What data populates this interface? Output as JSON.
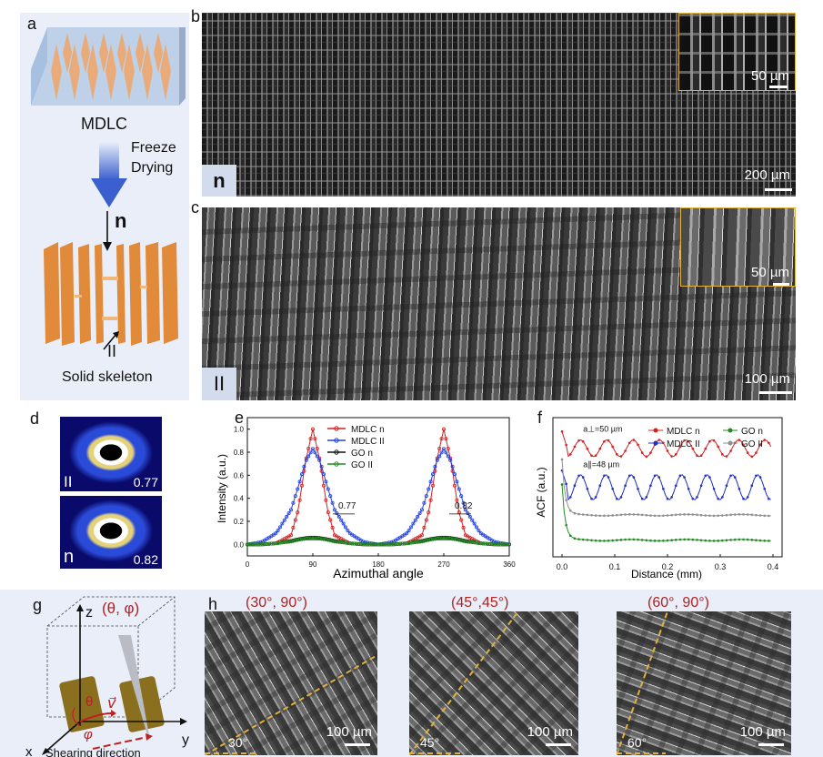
{
  "figure": {
    "panel_labels": {
      "a": "a",
      "b": "b",
      "c": "c",
      "d": "d",
      "e": "e",
      "f": "f",
      "g": "g",
      "h": "h"
    },
    "colors": {
      "panel_bg": "#e9eef8",
      "inset_border": "#e0b23a",
      "accent_red": "#b22222"
    }
  },
  "panel_a": {
    "top_label": "MDLC",
    "arrow_label_line1": "Freeze",
    "arrow_label_line2": "Drying",
    "n_label": "n",
    "parallel_label": "II",
    "bottom_label": "Solid skeleton"
  },
  "panel_b": {
    "direction_tag": "n",
    "main_scale": "200 µm",
    "inset_scale": "50 µm"
  },
  "panel_c": {
    "direction_tag": "II",
    "main_scale": "100 µm",
    "inset_scale": "50 µm"
  },
  "panel_d": {
    "images": [
      {
        "tag": "II",
        "value": "0.77"
      },
      {
        "tag": "n",
        "value": "0.82"
      }
    ]
  },
  "panel_g": {
    "z_axis": "z",
    "y_axis": "y",
    "x_axis": "x",
    "angles_title": "(θ, φ)",
    "theta": "θ",
    "phi": "φ",
    "velocity": "v⃗",
    "shear_label": "Shearing direction"
  },
  "panel_h": {
    "images": [
      {
        "title": "(30°, 90°)",
        "angle": "30°",
        "scale": "100 µm"
      },
      {
        "title": "(45°,45°)",
        "angle": "45°",
        "scale": "100 µm"
      },
      {
        "title": "(60°, 90°)",
        "angle": "60°",
        "scale": "100 µm"
      }
    ]
  },
  "chart_data": [
    {
      "panel": "e",
      "type": "line",
      "title": "",
      "xlabel": "Azimuthal angle",
      "ylabel": "Intensity (a.u.)",
      "xlim": [
        0,
        360
      ],
      "ylim": [
        -0.1,
        1.1
      ],
      "xticks": [
        0,
        90,
        180,
        270,
        360
      ],
      "yticks": [
        0.0,
        0.2,
        0.4,
        0.6,
        0.8,
        1.0
      ],
      "x": [
        0,
        20,
        40,
        60,
        70,
        80,
        90,
        100,
        110,
        120,
        140,
        160,
        180,
        200,
        220,
        240,
        250,
        260,
        270,
        280,
        290,
        300,
        320,
        340,
        360
      ],
      "series": [
        {
          "name": "MDLC n",
          "color": "#d02020",
          "marker": "circle-open",
          "values": [
            0,
            0,
            0.01,
            0.08,
            0.3,
            0.72,
            1.0,
            0.72,
            0.3,
            0.08,
            0.01,
            0,
            0,
            0,
            0.01,
            0.08,
            0.3,
            0.72,
            1.0,
            0.72,
            0.3,
            0.08,
            0.01,
            0,
            0
          ]
        },
        {
          "name": "MDLC II",
          "color": "#2040e0",
          "marker": "circle-open",
          "values": [
            0,
            0.02,
            0.1,
            0.3,
            0.5,
            0.72,
            0.83,
            0.72,
            0.5,
            0.3,
            0.1,
            0.02,
            0,
            0.02,
            0.1,
            0.3,
            0.5,
            0.72,
            0.83,
            0.72,
            0.5,
            0.3,
            0.1,
            0.02,
            0
          ]
        },
        {
          "name": "GO n",
          "color": "#111111",
          "marker": "circle-open",
          "values": [
            0,
            0,
            0.01,
            0.03,
            0.045,
            0.055,
            0.06,
            0.055,
            0.045,
            0.03,
            0.01,
            0,
            0,
            0,
            0.01,
            0.03,
            0.045,
            0.055,
            0.06,
            0.055,
            0.045,
            0.03,
            0.01,
            0,
            0
          ]
        },
        {
          "name": "GO II",
          "color": "#228b22",
          "marker": "diamond-open",
          "values": [
            0,
            0,
            0.01,
            0.025,
            0.04,
            0.05,
            0.05,
            0.05,
            0.04,
            0.025,
            0.01,
            0,
            0,
            0,
            0.01,
            0.025,
            0.04,
            0.05,
            0.05,
            0.05,
            0.04,
            0.025,
            0.01,
            0,
            0
          ]
        }
      ],
      "annotations": [
        {
          "text": "0.77",
          "x": 125,
          "y": 0.28
        },
        {
          "text": "0.82",
          "x": 285,
          "y": 0.28
        }
      ],
      "legend_position": "top-center"
    },
    {
      "panel": "f",
      "type": "line",
      "title": "",
      "xlabel": "Distance (mm)",
      "ylabel": "ACF (a.u.)",
      "xlim": [
        0,
        0.4
      ],
      "xticks": [
        0.0,
        0.1,
        0.2,
        0.3,
        0.4
      ],
      "yticks": [],
      "series": [
        {
          "name": "MDLC n",
          "color": "#d02020",
          "marker": "square",
          "period_mm": 0.05,
          "offset": 0.78,
          "amplitude": 0.06
        },
        {
          "name": "MDLC II",
          "color": "#2030c0",
          "marker": "circle",
          "period_mm": 0.048,
          "offset": 0.5,
          "amplitude": 0.09
        },
        {
          "name": "GO n",
          "color": "#228b22",
          "marker": "triangle-up-open",
          "offset": 0.12
        },
        {
          "name": "GO II",
          "color": "#909090",
          "marker": "triangle-down-open",
          "offset": 0.3
        }
      ],
      "annotations": [
        {
          "text": "a⊥=50 µm",
          "series": "MDLC n"
        },
        {
          "text": "a∥=48 µm",
          "series": "MDLC II"
        }
      ],
      "legend_position": "top-right"
    }
  ]
}
